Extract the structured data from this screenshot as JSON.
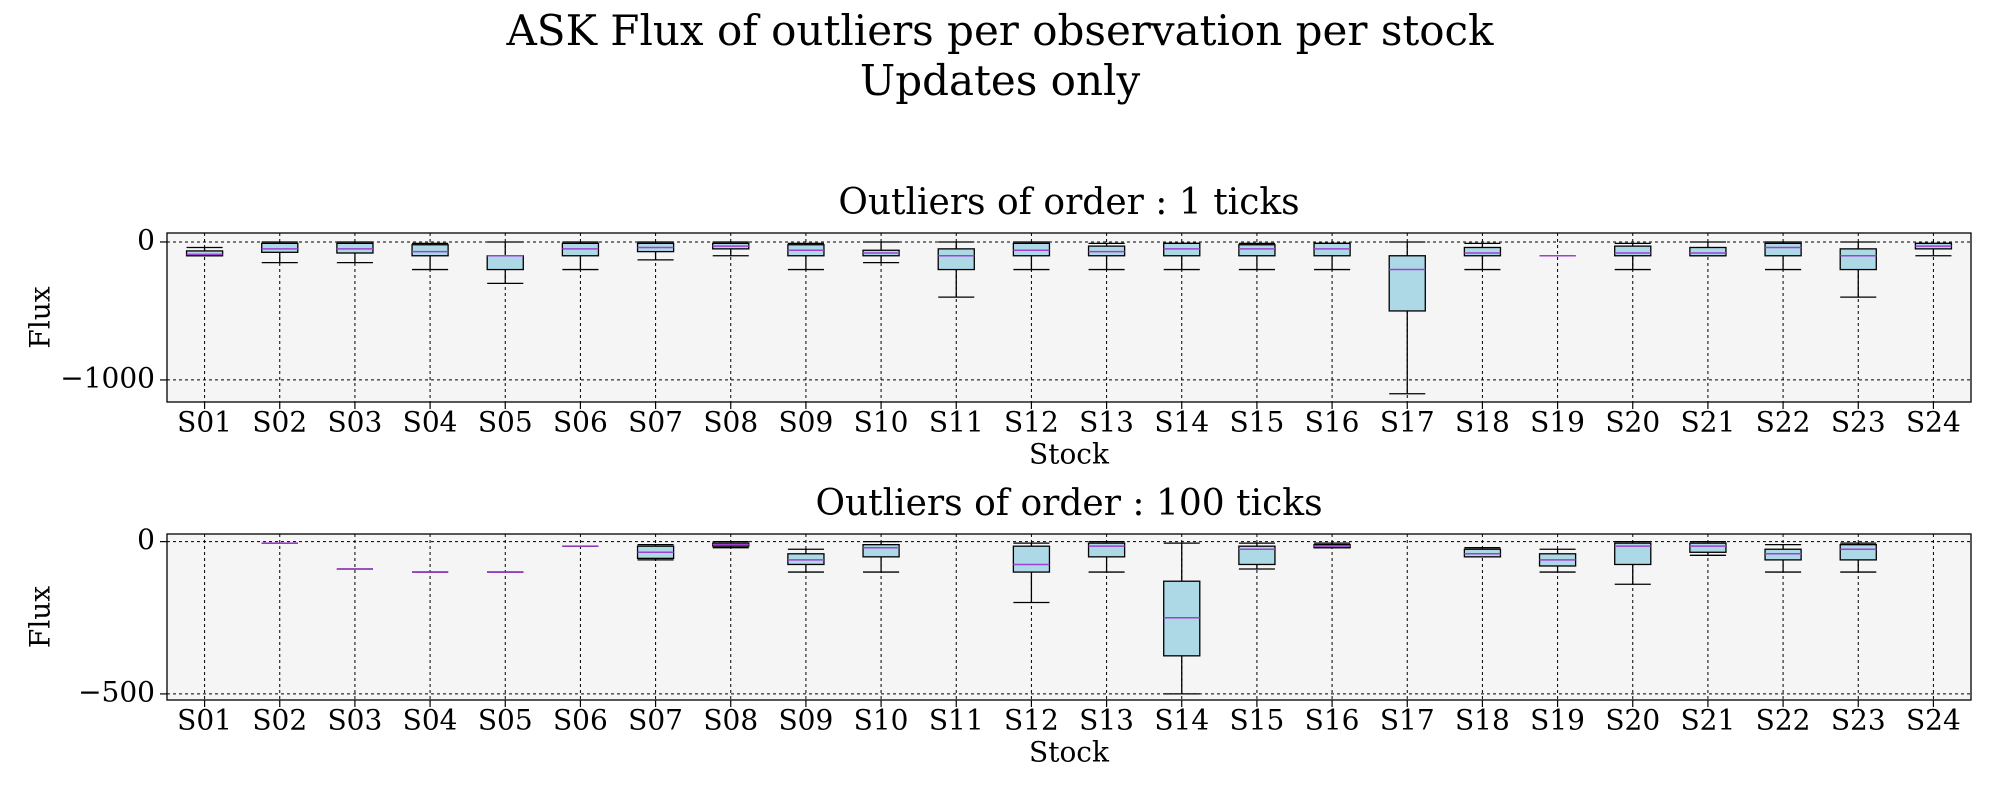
{
  "title": [
    "ASK Flux of outliers per observation per stock",
    "Updates only"
  ],
  "chart_data": [
    {
      "type": "box",
      "title": "Outliers of order : 1 ticks",
      "xlabel": "Stock",
      "ylabel": "Flux",
      "categories": [
        "S01",
        "S02",
        "S03",
        "S04",
        "S05",
        "S06",
        "S07",
        "S08",
        "S09",
        "S10",
        "S11",
        "S12",
        "S13",
        "S14",
        "S15",
        "S16",
        "S17",
        "S18",
        "S19",
        "S20",
        "S21",
        "S22",
        "S23",
        "S24"
      ],
      "boxes": {
        "whishi": [
          -40,
          0,
          0,
          -10,
          0,
          0,
          0,
          0,
          -10,
          0,
          0,
          0,
          -10,
          -10,
          -10,
          -10,
          0,
          -10,
          -100,
          -10,
          0,
          0,
          0,
          -10
        ],
        "q3": [
          -65,
          -10,
          -10,
          -20,
          -100,
          -10,
          -10,
          -10,
          -20,
          -60,
          -50,
          -10,
          -30,
          -10,
          -20,
          -10,
          -100,
          -40,
          -100,
          -30,
          -40,
          -10,
          -50,
          -10
        ],
        "median": [
          -90,
          -50,
          -50,
          -70,
          -100,
          -50,
          -40,
          -30,
          -60,
          -80,
          -100,
          -60,
          -70,
          -50,
          -50,
          -50,
          -200,
          -80,
          -100,
          -80,
          -80,
          -40,
          -100,
          -30
        ],
        "q1": [
          -100,
          -75,
          -80,
          -100,
          -200,
          -100,
          -70,
          -50,
          -100,
          -100,
          -200,
          -100,
          -100,
          -100,
          -100,
          -100,
          -500,
          -100,
          -100,
          -100,
          -100,
          -100,
          -200,
          -50
        ],
        "whislo": [
          -100,
          -150,
          -150,
          -200,
          -300,
          -200,
          -130,
          -100,
          -200,
          -150,
          -400,
          -200,
          -200,
          -200,
          -200,
          -200,
          -1100,
          -200,
          -100,
          -200,
          -100,
          -200,
          -400,
          -100
        ]
      },
      "box_color": "#add8e6",
      "median_color": "#a040d0",
      "ylim": [
        -1160,
        65
      ],
      "yticks": [
        0,
        {
          "value": -1000,
          "label": "−1000"
        }
      ],
      "grid": true
    },
    {
      "type": "box",
      "title": "Outliers of order : 100 ticks",
      "xlabel": "Stock",
      "ylabel": "Flux",
      "categories": [
        "S01",
        "S02",
        "S03",
        "S04",
        "S05",
        "S06",
        "S07",
        "S08",
        "S09",
        "S10",
        "S11",
        "S12",
        "S13",
        "S14",
        "S15",
        "S16",
        "S17",
        "S18",
        "S19",
        "S20",
        "S21",
        "S22",
        "S23",
        "S24"
      ],
      "boxes": {
        "whishi": [
          null,
          -5,
          -90,
          -100,
          -100,
          -15,
          -10,
          0,
          -25,
          0,
          null,
          -5,
          0,
          -5,
          -5,
          -5,
          null,
          -20,
          -25,
          0,
          0,
          -10,
          -5,
          null
        ],
        "q3": [
          null,
          -5,
          -90,
          -100,
          -100,
          -15,
          -15,
          -5,
          -40,
          -10,
          null,
          -15,
          -5,
          -130,
          -15,
          -10,
          null,
          -25,
          -40,
          -5,
          -5,
          -25,
          -10,
          null
        ],
        "median": [
          null,
          -5,
          -90,
          -100,
          -100,
          -15,
          -35,
          -10,
          -60,
          -20,
          null,
          -75,
          -15,
          -250,
          -25,
          -15,
          null,
          -40,
          -60,
          -15,
          -15,
          -40,
          -25,
          null
        ],
        "q1": [
          null,
          -5,
          -90,
          -100,
          -100,
          -15,
          -55,
          -15,
          -75,
          -50,
          null,
          -100,
          -50,
          -375,
          -75,
          -20,
          null,
          -50,
          -80,
          -75,
          -35,
          -60,
          -60,
          null
        ],
        "whislo": [
          null,
          -5,
          -90,
          -100,
          -100,
          -15,
          -60,
          -20,
          -100,
          -100,
          null,
          -200,
          -100,
          -500,
          -90,
          -20,
          null,
          -50,
          -100,
          -140,
          -45,
          -100,
          -100,
          null
        ]
      },
      "box_color": "#add8e6",
      "median_color": "#a040d0",
      "ylim": [
        -520,
        25
      ],
      "yticks": [
        0,
        {
          "value": -500,
          "label": "−500"
        }
      ],
      "grid": true
    }
  ]
}
